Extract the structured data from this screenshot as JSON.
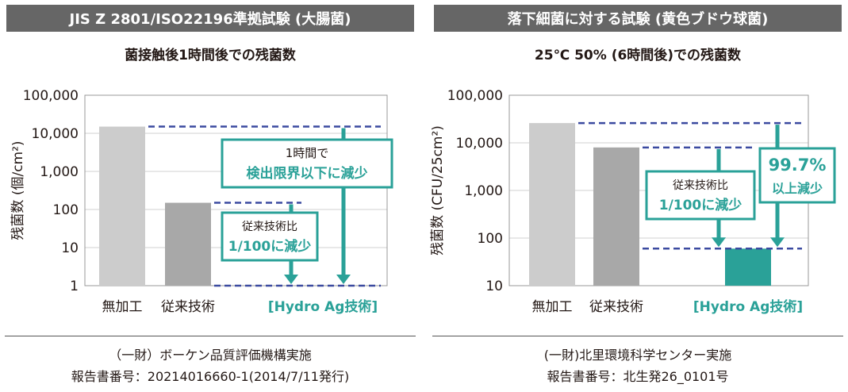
{
  "left": {
    "title": "JIS Z 2801/ISO22196準拠試験 (大腸菌)",
    "subtitle": "菌接触後1時間後での残菌数",
    "footer_line1": "（一財）ボーケン品質評価機構実施",
    "footer_line2": "報告書番号：20214016660-1(2014/7/11発行)",
    "callout_near": {
      "line1": "従来技術比",
      "line2": "1/100に減少"
    },
    "callout_far": {
      "line1": "1時間で",
      "line2": "検出限界以下に減少"
    }
  },
  "right": {
    "title": "落下細菌に対する試験 (黄色ブドウ球菌)",
    "subtitle": "25℃ 50% (6時間後)での残菌数",
    "footer_line1": "(一財)北里環境科学センター実施",
    "footer_line2": "報告書番号：北生発26_0101号",
    "callout_near": {
      "line1": "従来技術比",
      "line2": "1/100に減少"
    },
    "callout_far": {
      "line1": "99.7%",
      "line2": "以上減少"
    }
  },
  "colors": {
    "untreated": "#cccccc",
    "conventional": "#a8a8a8",
    "hydro": "#2aa198",
    "accent": "#2aa198",
    "dashed": "#3b4aa0",
    "title_bg": "#666666"
  },
  "chart_data": [
    {
      "type": "bar",
      "scale": "log",
      "categories": [
        "無加工",
        "従来技術",
        "[Hydro Ag技術]"
      ],
      "values": [
        15000,
        150,
        1
      ],
      "ylabel": "残菌数 (個/cm²)",
      "yticks": [
        "1",
        "10",
        "100",
        "1,000",
        "10,000",
        "100,000"
      ],
      "ylim": [
        1,
        100000
      ],
      "grid": true
    },
    {
      "type": "bar",
      "scale": "log",
      "categories": [
        "無加工",
        "従来技術",
        "[Hydro Ag技術]"
      ],
      "values": [
        26000,
        8000,
        60
      ],
      "ylabel": "残菌数 (CFU/25cm²)",
      "yticks": [
        "10",
        "100",
        "1,000",
        "10,000",
        "100,000"
      ],
      "ylim": [
        10,
        100000
      ],
      "grid": true
    }
  ]
}
